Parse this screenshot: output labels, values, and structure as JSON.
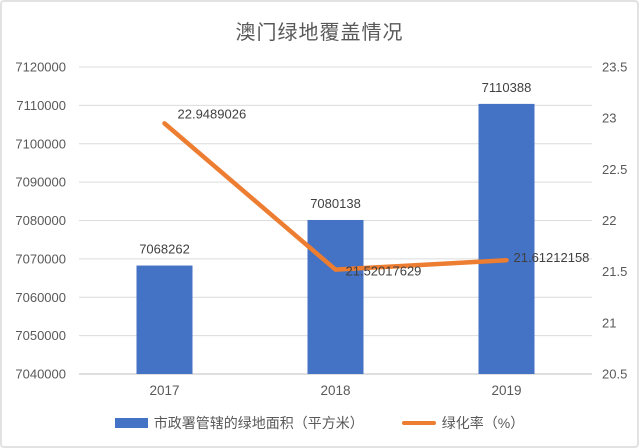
{
  "title": "澳门绿地覆盖情况",
  "colors": {
    "bar": "#4472C4",
    "line": "#ED7D31",
    "grid": "#DCDCDC",
    "axis": "#BFBFBF",
    "tick_text": "#595959",
    "data_label_text": "#404040",
    "title_text": "#595959",
    "frame_border": "#E2E2E2"
  },
  "legend": [
    {
      "type": "bar",
      "label": "市政署管辖的绿地面积（平方米）"
    },
    {
      "type": "line",
      "label": "绿化率（%）"
    }
  ],
  "chart_data": {
    "type": "bar+line combo",
    "title": "澳门绿地覆盖情况",
    "categories": [
      "2017",
      "2018",
      "2019"
    ],
    "series": [
      {
        "name": "市政署管辖的绿地面积（平方米）",
        "type": "bar",
        "axis": "left",
        "values": [
          7068262,
          7080138,
          7110388
        ],
        "labels": [
          "7068262",
          "7080138",
          "7110388"
        ]
      },
      {
        "name": "绿化率（%）",
        "type": "line",
        "axis": "right",
        "values": [
          22.9489026,
          21.52017629,
          21.61212158
        ],
        "labels": [
          "22.9489026",
          "21.52017629",
          "21.61212158"
        ]
      }
    ],
    "left_axis": {
      "min": 7040000,
      "max": 7120000,
      "step": 10000,
      "ticks": [
        "7120000",
        "7110000",
        "7100000",
        "7090000",
        "7080000",
        "7070000",
        "7060000",
        "7050000",
        "7040000"
      ]
    },
    "right_axis": {
      "min": 20.5,
      "max": 23.5,
      "step": 0.5,
      "ticks": [
        "23.5",
        "23",
        "22.5",
        "22",
        "21.5",
        "21",
        "20.5"
      ]
    },
    "grid": true,
    "legend_position": "bottom"
  }
}
